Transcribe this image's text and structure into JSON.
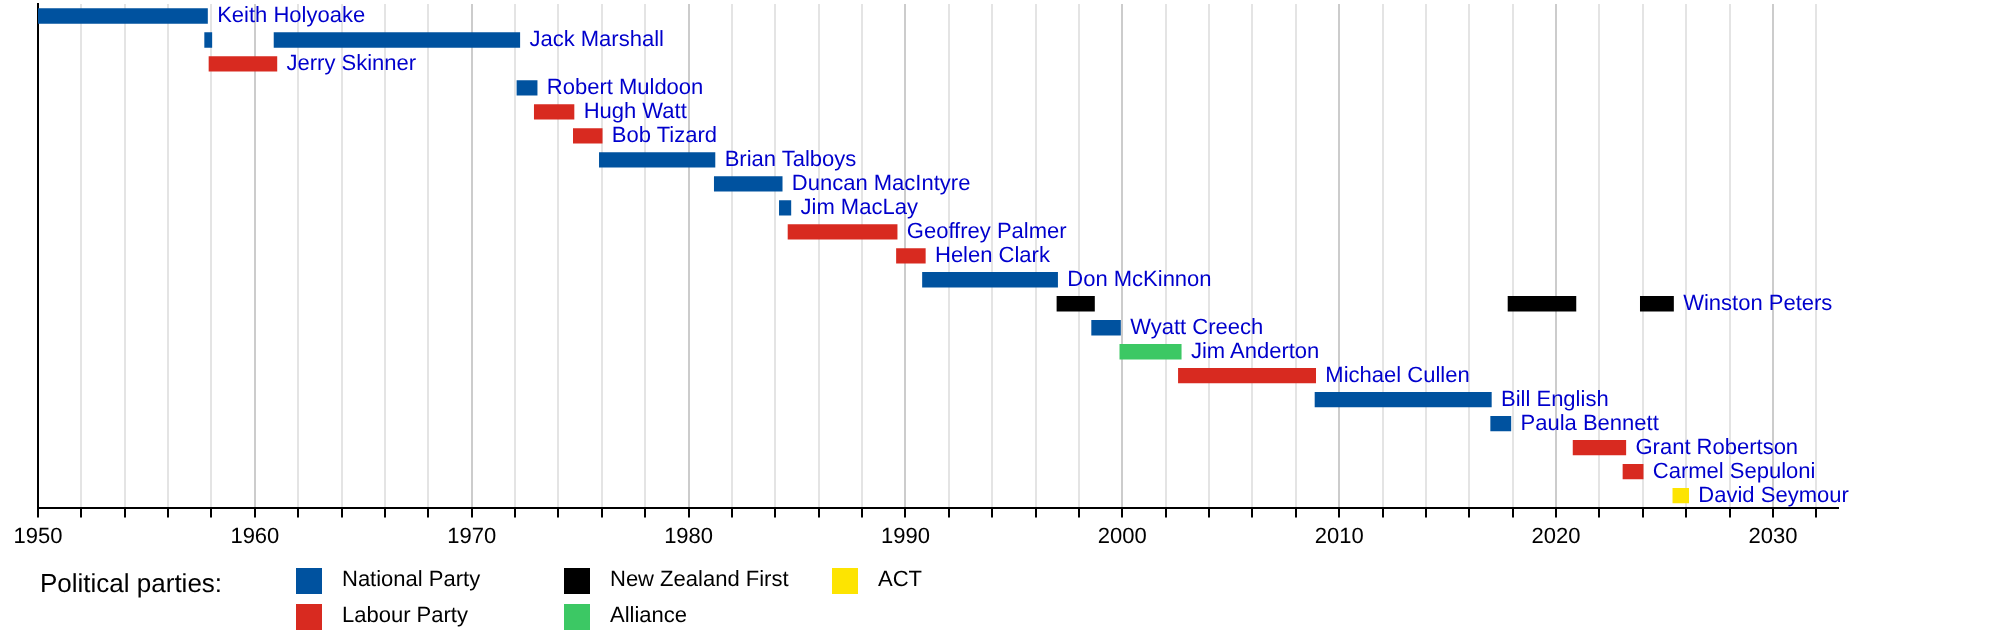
{
  "chart_data": {
    "type": "bar",
    "orientation": "horizontal",
    "legend_title": "Political parties:",
    "legend": "bottom",
    "grid": "x",
    "categories": [
      "Keith Holyoake",
      "Jack Marshall",
      "Jerry Skinner",
      "Robert Muldoon",
      "Hugh Watt",
      "Bob Tizard",
      "Brian Talboys",
      "Duncan MacIntyre",
      "Jim MacLay",
      "Geoffrey Palmer",
      "Helen Clark",
      "Don McKinnon",
      "Winston Peters",
      "Wyatt Creech",
      "Jim Anderton",
      "Michael Cullen",
      "Bill English",
      "Paula Bennett",
      "Grant Robertson",
      "Carmel Sepuloni",
      "David Seymour"
    ],
    "xlim": [
      1950,
      2033
    ],
    "xticks": [
      1950,
      {
        "value": 1952,
        "label": null
      },
      {
        "value": 1954,
        "label": null
      },
      {
        "value": 1956,
        "label": null
      },
      {
        "value": 1958,
        "label": null
      },
      1960,
      {
        "value": 1962,
        "label": null
      },
      {
        "value": 1964,
        "label": null
      },
      {
        "value": 1966,
        "label": null
      },
      {
        "value": 1968,
        "label": null
      },
      1970,
      {
        "value": 1972,
        "label": null
      },
      {
        "value": 1974,
        "label": null
      },
      {
        "value": 1976,
        "label": null
      },
      {
        "value": 1978,
        "label": null
      },
      1980,
      {
        "value": 1982,
        "label": null
      },
      {
        "value": 1984,
        "label": null
      },
      {
        "value": 1986,
        "label": null
      },
      {
        "value": 1988,
        "label": null
      },
      1990,
      {
        "value": 1992,
        "label": null
      },
      {
        "value": 1994,
        "label": null
      },
      {
        "value": 1996,
        "label": null
      },
      {
        "value": 1998,
        "label": null
      },
      2000,
      {
        "value": 2002,
        "label": null
      },
      {
        "value": 2004,
        "label": null
      },
      {
        "value": 2006,
        "label": null
      },
      {
        "value": 2008,
        "label": null
      },
      2010,
      {
        "value": 2012,
        "label": null
      },
      {
        "value": 2014,
        "label": null
      },
      {
        "value": 2016,
        "label": null
      },
      {
        "value": 2018,
        "label": null
      },
      2020,
      {
        "value": 2022,
        "label": null
      },
      {
        "value": 2024,
        "label": null
      },
      {
        "value": 2026,
        "label": null
      },
      {
        "value": 2028,
        "label": null
      },
      2030,
      {
        "value": 2032,
        "label": null
      }
    ],
    "series": [
      {
        "name": "National Party",
        "color": "#00529f",
        "values": [
          7.8,
          0.3,
          null,
          0.9,
          null,
          null,
          5.3,
          3.1,
          0.5,
          null,
          null,
          6.2,
          null,
          1.3,
          null,
          null,
          8.1,
          0.9,
          null,
          null,
          null
        ],
        "base": [
          1950,
          1957.7,
          null,
          1972.1,
          null,
          null,
          1975.9,
          1981.2,
          1984.2,
          null,
          null,
          1990.8,
          null,
          1998.6,
          null,
          null,
          2008.9,
          2017.0,
          null,
          null,
          null
        ]
      },
      {
        "name": "Labour Party",
        "color": "#d82a20",
        "values": [
          null,
          null,
          3.1,
          null,
          1.8,
          1.3,
          null,
          null,
          null,
          5.0,
          1.3,
          null,
          null,
          null,
          null,
          6.3,
          null,
          null,
          2.4,
          0.9,
          null
        ],
        "base": [
          null,
          null,
          1957.9,
          null,
          1972.9,
          1974.7,
          null,
          null,
          null,
          1984.6,
          1989.6,
          null,
          null,
          null,
          null,
          2002.6,
          null,
          null,
          2020.8,
          2023.1,
          null
        ]
      },
      {
        "name": "New Zealand First",
        "color": "#000000",
        "values": [
          null,
          null,
          null,
          null,
          null,
          null,
          null,
          null,
          null,
          null,
          null,
          null,
          1.7,
          null,
          null,
          null,
          null,
          null,
          null,
          null,
          null
        ],
        "base": [
          null,
          null,
          null,
          null,
          null,
          null,
          null,
          null,
          null,
          null,
          null,
          null,
          1997.0,
          null,
          null,
          null,
          null,
          null,
          null,
          null,
          null
        ]
      },
      {
        "name": "Alliance",
        "color": "#3cc864",
        "values": [
          null,
          null,
          null,
          null,
          null,
          null,
          null,
          null,
          null,
          null,
          null,
          null,
          null,
          null,
          2.8,
          null,
          null,
          null,
          null,
          null,
          null
        ],
        "base": [
          null,
          null,
          null,
          null,
          null,
          null,
          null,
          null,
          null,
          null,
          null,
          null,
          null,
          null,
          1999.9,
          null,
          null,
          null,
          null,
          null,
          null
        ]
      },
      {
        "name": "ACT",
        "color": "#fde401",
        "values": [
          null,
          null,
          null,
          null,
          null,
          null,
          null,
          null,
          null,
          null,
          null,
          null,
          null,
          null,
          null,
          null,
          null,
          null,
          null,
          null,
          0.7
        ],
        "base": [
          null,
          null,
          null,
          null,
          null,
          null,
          null,
          null,
          null,
          null,
          null,
          null,
          null,
          null,
          null,
          null,
          null,
          null,
          null,
          null,
          2025.4
        ]
      },
      {
        "color": "#00529f",
        "values": [
          null,
          11.3,
          null,
          null,
          null,
          null,
          null,
          null,
          null,
          null,
          null,
          null,
          null,
          null,
          null,
          null,
          null,
          null,
          null,
          null,
          null
        ],
        "base": [
          null,
          1960.9,
          null,
          null,
          null,
          null,
          null,
          null,
          null,
          null,
          null,
          null,
          null,
          null,
          null,
          null,
          null,
          null,
          null,
          null,
          null
        ]
      },
      {
        "color": "#000000",
        "values": [
          null,
          null,
          null,
          null,
          null,
          null,
          null,
          null,
          null,
          null,
          null,
          null,
          3.1,
          null,
          null,
          null,
          null,
          null,
          null,
          null,
          null
        ],
        "base": [
          null,
          null,
          null,
          null,
          null,
          null,
          null,
          null,
          null,
          null,
          null,
          null,
          2017.8,
          null,
          null,
          null,
          null,
          null,
          null,
          null,
          null
        ]
      },
      {
        "color": "#000000",
        "values": [
          null,
          null,
          null,
          null,
          null,
          null,
          null,
          null,
          null,
          null,
          null,
          null,
          1.5,
          null,
          null,
          null,
          null,
          null,
          null,
          null,
          null
        ],
        "base": [
          null,
          null,
          null,
          null,
          null,
          null,
          null,
          null,
          null,
          null,
          null,
          null,
          2023.9,
          null,
          null,
          null,
          null,
          null,
          null,
          null,
          null
        ]
      }
    ]
  }
}
